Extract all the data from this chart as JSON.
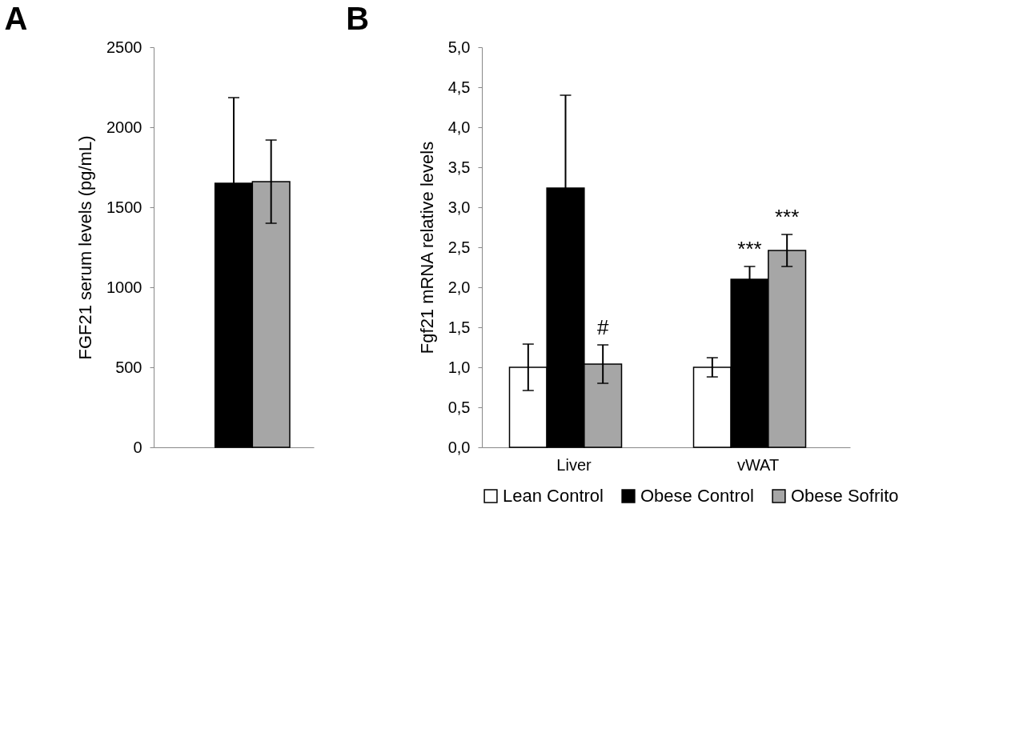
{
  "chart_data": [
    {
      "type": "bar",
      "title": "A",
      "ylabel": "FGF21 serum levels (pg/mL)",
      "categories": [
        null
      ],
      "ylim": [
        0,
        2500
      ],
      "yticks": [
        0,
        500,
        1000,
        1500,
        2000,
        2500
      ],
      "series": [
        {
          "color": "#ffffff",
          "values": [
            null
          ],
          "errors": [
            null
          ]
        },
        {
          "color": "#000000",
          "values": [
            1650
          ],
          "errors": [
            535
          ]
        },
        {
          "color": "#a6a6a6",
          "values": [
            1660
          ],
          "errors": [
            260
          ]
        }
      ]
    },
    {
      "type": "bar",
      "title": "B",
      "ylabel": "Fgf21 mRNA relative levels",
      "categories": [
        "Liver",
        "vWAT"
      ],
      "ylim": [
        0,
        5
      ],
      "legend": "bottom",
      "yticks": [
        {
          "value": 0,
          "label": "0,0"
        },
        {
          "value": 0.5,
          "label": "0,5"
        },
        {
          "value": 1,
          "label": "1,0"
        },
        {
          "value": 1.5,
          "label": "1,5"
        },
        {
          "value": 2,
          "label": "2,0"
        },
        {
          "value": 2.5,
          "label": "2,5"
        },
        {
          "value": 3,
          "label": "3,0"
        },
        {
          "value": 3.5,
          "label": "3,5"
        },
        {
          "value": 4,
          "label": "4,0"
        },
        {
          "value": 4.5,
          "label": "4,5"
        },
        {
          "value": 5,
          "label": "5,0"
        }
      ],
      "series": [
        {
          "name": "Lean Control",
          "color": "#ffffff",
          "values": [
            1.0,
            1.0
          ],
          "errors": [
            0.29,
            0.12
          ]
        },
        {
          "name": "Obese Control",
          "color": "#000000",
          "values": [
            3.24,
            2.1
          ],
          "errors": [
            1.16,
            0.16
          ],
          "value_labels": [
            null,
            "***"
          ]
        },
        {
          "name": "Obese Sofrito",
          "color": "#a6a6a6",
          "values": [
            1.04,
            2.46
          ],
          "errors": [
            0.24,
            0.2
          ],
          "value_labels": [
            "#",
            "***"
          ]
        }
      ]
    }
  ]
}
